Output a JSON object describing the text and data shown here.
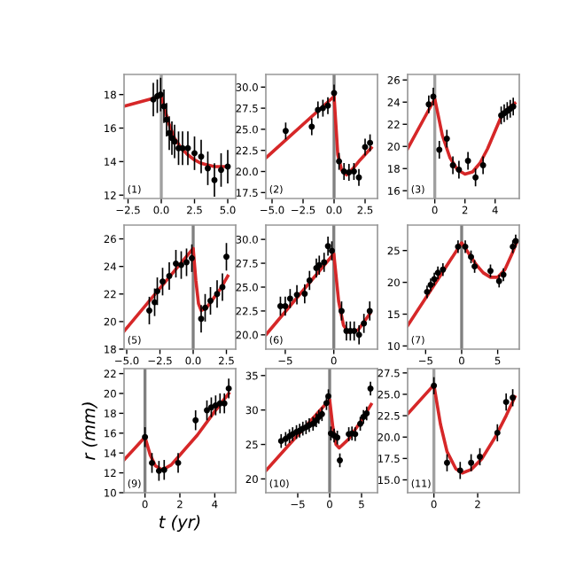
{
  "chart_data": [
    {
      "type": "scatter",
      "xlim": [
        -2.8,
        5.6
      ],
      "ylim": [
        11.8,
        19.2
      ],
      "xticks": [
        {
          "value": -2.5,
          "label": "−2.5"
        },
        {
          "value": 0,
          "label": "0.0"
        },
        {
          "value": 2.5,
          "label": "2.5"
        },
        {
          "value": 5,
          "label": "5.0"
        }
      ],
      "yticks": [
        12,
        14,
        16,
        18
      ],
      "annotations": [
        "(1)"
      ],
      "ref_lines": [
        {
          "axis": "x",
          "value": 0,
          "color": "#a0a0a0"
        }
      ],
      "series": [
        {
          "marker": "circle",
          "color": "#000000",
          "x": [
            -0.6,
            -0.3,
            -0.05,
            0.2,
            0.4,
            0.6,
            0.8,
            1.0,
            1.3,
            1.6,
            2.0,
            2.5,
            3.0,
            3.5,
            4.0,
            4.5,
            5.0
          ],
          "values": [
            17.7,
            17.9,
            18.0,
            17.3,
            16.5,
            15.7,
            15.4,
            15.2,
            14.8,
            14.8,
            14.8,
            14.5,
            14.3,
            13.6,
            12.9,
            13.5,
            13.7
          ],
          "errors": [
            1,
            1,
            1,
            1,
            1,
            1,
            1,
            1,
            1,
            1,
            1,
            1,
            1,
            1,
            1,
            1,
            1
          ]
        },
        {
          "type": "line",
          "color": "#d62728",
          "x": [
            -2.8,
            0,
            0.3,
            0.6,
            1.0,
            1.5,
            2.0,
            2.5,
            3.0,
            3.5,
            4.0,
            4.5,
            5.0
          ],
          "values": [
            17.3,
            17.9,
            17.0,
            16.2,
            15.4,
            14.8,
            14.4,
            14.1,
            13.9,
            13.8,
            13.7,
            13.7,
            13.7
          ]
        }
      ]
    },
    {
      "type": "scatter",
      "xlim": [
        -5.5,
        3.5
      ],
      "ylim": [
        16.8,
        31.5
      ],
      "xticks": [
        {
          "value": -5,
          "label": "−5.0"
        },
        {
          "value": -2.5,
          "label": "−2.5"
        },
        {
          "value": 0,
          "label": "0.0"
        },
        {
          "value": 2.5,
          "label": "2.5"
        }
      ],
      "yticks": [
        {
          "value": 17.5,
          "label": "17.5"
        },
        {
          "value": 20,
          "label": "20.0"
        },
        {
          "value": 22.5,
          "label": "22.5"
        },
        {
          "value": 25,
          "label": "25.0"
        },
        {
          "value": 27.5,
          "label": "27.5"
        },
        {
          "value": 30,
          "label": "30.0"
        }
      ],
      "annotations": [
        "(2)"
      ],
      "ref_lines": [
        {
          "axis": "x",
          "value": 0,
          "color": "#808080"
        }
      ],
      "series": [
        {
          "marker": "circle",
          "color": "#000000",
          "x": [
            -3.9,
            -1.8,
            -1.3,
            -0.9,
            -0.5,
            0.0,
            0.4,
            0.8,
            1.2,
            1.6,
            2.0,
            2.5,
            2.9
          ],
          "values": [
            24.8,
            25.3,
            27.3,
            27.5,
            27.8,
            29.3,
            21.2,
            20.0,
            19.9,
            20.0,
            19.3,
            22.9,
            23.4
          ],
          "errors": [
            1,
            1,
            1,
            1,
            1,
            1,
            1,
            1,
            1,
            1,
            1,
            1,
            1
          ]
        },
        {
          "type": "line",
          "color": "#d62728",
          "x": [
            -5.5,
            0,
            0.3,
            0.6,
            1.0,
            1.5,
            2.0,
            3.0
          ],
          "values": [
            21.6,
            28.9,
            22.0,
            20.2,
            19.6,
            20.3,
            21.2,
            22.8
          ]
        }
      ]
    },
    {
      "type": "scatter",
      "xlim": [
        -1.8,
        5.6
      ],
      "ylim": [
        15.3,
        26.5
      ],
      "xticks": [
        0,
        2,
        4
      ],
      "yticks": [
        16,
        18,
        20,
        22,
        24,
        26
      ],
      "annotations": [
        "(3)"
      ],
      "ref_lines": [
        {
          "axis": "x",
          "value": 0,
          "color": "#a0a0a0"
        }
      ],
      "series": [
        {
          "marker": "circle",
          "color": "#000000",
          "x": [
            -0.4,
            -0.1,
            0.3,
            0.8,
            1.2,
            1.6,
            2.2,
            2.7,
            3.2,
            4.4,
            4.6,
            4.8,
            5.0,
            5.2
          ],
          "values": [
            23.8,
            24.5,
            19.7,
            20.7,
            18.3,
            17.9,
            18.7,
            17.2,
            18.3,
            22.8,
            23.0,
            23.2,
            23.4,
            23.6
          ],
          "errors": [
            0.8,
            0.8,
            0.8,
            0.8,
            0.8,
            0.8,
            0.8,
            0.8,
            0.8,
            0.8,
            0.8,
            0.8,
            0.8,
            0.8
          ]
        },
        {
          "type": "line",
          "color": "#d62728",
          "x": [
            -1.8,
            0,
            0.5,
            1.0,
            1.5,
            2.0,
            2.5,
            3.0,
            3.5,
            4.0,
            4.5,
            5.3
          ],
          "values": [
            19.8,
            24.3,
            21.0,
            19.0,
            17.9,
            17.5,
            17.7,
            18.5,
            19.8,
            21.4,
            23.0,
            23.9
          ]
        }
      ]
    },
    {
      "type": "scatter",
      "xlim": [
        -5.2,
        3.2
      ],
      "ylim": [
        18,
        27
      ],
      "xticks": [
        {
          "value": -5,
          "label": "−5.0"
        },
        {
          "value": -2.5,
          "label": "−2.5"
        },
        {
          "value": 0,
          "label": "0.0"
        },
        {
          "value": 2.5,
          "label": "2.5"
        }
      ],
      "yticks": [
        18,
        20,
        22,
        24,
        26
      ],
      "annotations": [
        "(5)"
      ],
      "ref_lines": [
        {
          "axis": "x",
          "value": 0,
          "color": "#808080"
        }
      ],
      "series": [
        {
          "marker": "circle",
          "color": "#000000",
          "x": [
            -3.3,
            -2.9,
            -2.7,
            -2.3,
            -1.8,
            -1.3,
            -0.9,
            -0.5,
            -0.1,
            0.6,
            0.9,
            1.3,
            1.8,
            2.2,
            2.5
          ],
          "values": [
            20.8,
            21.4,
            22.2,
            22.9,
            23.3,
            24.2,
            24.1,
            24.3,
            24.6,
            20.2,
            21.0,
            21.5,
            22.0,
            22.5,
            24.7
          ],
          "errors": [
            1,
            1,
            1,
            1,
            1,
            1,
            1,
            1,
            1,
            1,
            1,
            1,
            1,
            1,
            1
          ]
        },
        {
          "type": "line",
          "color": "#d62728",
          "x": [
            -5.2,
            0,
            0.2,
            0.4,
            0.6,
            1.0,
            2.0,
            2.6
          ],
          "values": [
            19.3,
            25.3,
            23.0,
            21.3,
            20.8,
            21.0,
            22.3,
            23.3
          ]
        }
      ]
    },
    {
      "type": "scatter",
      "xlim": [
        -7,
        4.5
      ],
      "ylim": [
        18.5,
        31.5
      ],
      "xticks": [
        {
          "value": -5,
          "label": "−5"
        },
        0
      ],
      "yticks": [
        {
          "value": 20,
          "label": "20.0"
        },
        {
          "value": 22.5,
          "label": "22.5"
        },
        {
          "value": 25,
          "label": "25.0"
        },
        {
          "value": 27.5,
          "label": "27.5"
        },
        {
          "value": 30,
          "label": "30.0"
        }
      ],
      "annotations": [
        "(6)"
      ],
      "ref_lines": [
        {
          "axis": "x",
          "value": 0,
          "color": "#808080"
        }
      ],
      "series": [
        {
          "marker": "circle",
          "color": "#000000",
          "x": [
            -5.5,
            -5.0,
            -4.5,
            -3.8,
            -3.0,
            -2.5,
            -1.8,
            -1.5,
            -1.0,
            -0.6,
            -0.2,
            0.8,
            1.3,
            1.7,
            2.1,
            2.6,
            3.1,
            3.7
          ],
          "values": [
            23.0,
            23.0,
            23.8,
            24.2,
            24.3,
            25.7,
            27.0,
            27.3,
            27.6,
            29.3,
            28.8,
            22.5,
            20.4,
            20.4,
            20.4,
            20.0,
            21.2,
            22.5
          ],
          "errors": [
            1,
            1,
            1,
            1,
            1,
            1,
            1,
            1,
            1,
            1,
            1,
            1,
            1,
            1,
            1,
            1,
            1,
            1
          ]
        },
        {
          "type": "line",
          "color": "#d62728",
          "x": [
            -7,
            0,
            0.5,
            1.0,
            1.5,
            2.5,
            3.7
          ],
          "values": [
            20.0,
            28.5,
            23.5,
            21.0,
            20.3,
            20.5,
            22.2
          ]
        }
      ]
    },
    {
      "type": "scatter",
      "xlim": [
        -7.5,
        8
      ],
      "ylim": [
        9.5,
        29
      ],
      "xticks": [
        {
          "value": -5,
          "label": "−5"
        },
        0,
        5
      ],
      "yticks": [
        10,
        15,
        20,
        25
      ],
      "annotations": [
        "(7)"
      ],
      "ref_lines": [
        {
          "axis": "x",
          "value": 0,
          "color": "#808080"
        }
      ],
      "series": [
        {
          "marker": "circle",
          "color": "#000000",
          "x": [
            -4.8,
            -4.3,
            -3.8,
            -3.3,
            -2.6,
            -0.5,
            0.5,
            1.3,
            1.8,
            4.0,
            5.2,
            5.8,
            7.1,
            7.5
          ],
          "values": [
            18.5,
            19.6,
            20.5,
            21.5,
            22.0,
            25.6,
            25.6,
            24.0,
            22.5,
            21.8,
            20.2,
            21.2,
            25.6,
            26.5
          ],
          "errors": [
            1,
            1,
            1,
            1,
            1,
            1,
            1,
            1,
            1,
            1,
            1,
            1,
            1,
            1
          ]
        },
        {
          "type": "line",
          "color": "#d62728",
          "x": [
            -7.5,
            0,
            1,
            2,
            3,
            4,
            5,
            6,
            7,
            7.6
          ],
          "values": [
            13.2,
            26.2,
            24.5,
            22.8,
            21.5,
            20.8,
            20.8,
            22.0,
            24.5,
            26.2
          ]
        }
      ]
    },
    {
      "type": "scatter",
      "xlim": [
        -1.2,
        5.2
      ],
      "ylim": [
        10,
        22.5
      ],
      "xticks": [
        0,
        2,
        4
      ],
      "yticks": [
        10,
        12,
        14,
        16,
        18,
        20,
        22
      ],
      "xlabel": "t (yr)",
      "ylabel": "r (mm)",
      "annotations": [
        "(9)"
      ],
      "ref_lines": [
        {
          "axis": "x",
          "value": 0,
          "color": "#808080"
        }
      ],
      "series": [
        {
          "marker": "circle",
          "color": "#000000",
          "x": [
            0.0,
            0.4,
            0.8,
            1.1,
            1.9,
            2.9,
            3.55,
            3.8,
            4.05,
            4.3,
            4.55,
            4.8
          ],
          "values": [
            15.6,
            13.0,
            12.2,
            12.3,
            13.0,
            17.3,
            18.3,
            18.6,
            18.8,
            19.0,
            19.0,
            20.5
          ],
          "errors": [
            1,
            1,
            1,
            1,
            1,
            1,
            1,
            1,
            1,
            1,
            1,
            1
          ]
        },
        {
          "type": "line",
          "color": "#d62728",
          "x": [
            -1.2,
            0,
            0.3,
            0.6,
            1.0,
            1.5,
            2.0,
            3.0,
            4.0,
            4.8
          ],
          "values": [
            13.3,
            15.6,
            13.8,
            12.7,
            12.3,
            12.8,
            13.8,
            15.8,
            18.2,
            20.0
          ]
        }
      ]
    },
    {
      "type": "scatter",
      "xlim": [
        -10,
        7.5
      ],
      "ylim": [
        18,
        36
      ],
      "xticks": [
        {
          "value": -5,
          "label": "−5"
        },
        0,
        5
      ],
      "yticks": [
        20,
        25,
        30,
        35
      ],
      "annotations": [
        "(10)"
      ],
      "ref_lines": [
        {
          "axis": "x",
          "value": 0,
          "color": "#808080"
        }
      ],
      "series": [
        {
          "marker": "circle",
          "color": "#000000",
          "x": [
            -7.6,
            -6.9,
            -6.3,
            -5.8,
            -5.2,
            -4.7,
            -4.2,
            -3.7,
            -3.2,
            -2.6,
            -2.1,
            -1.7,
            -1.2,
            -0.5,
            -0.2,
            0.2,
            0.7,
            1.2,
            1.6,
            3.0,
            3.5,
            4.0,
            4.8,
            5.3,
            5.8,
            6.4
          ],
          "values": [
            25.5,
            25.8,
            26.2,
            26.5,
            26.8,
            27.0,
            27.3,
            27.5,
            27.8,
            28.0,
            28.5,
            29.0,
            29.4,
            31.0,
            32.0,
            26.6,
            26.3,
            26.0,
            22.7,
            26.5,
            26.6,
            26.5,
            28.0,
            29.0,
            29.5,
            33.1
          ],
          "errors": [
            1,
            1,
            1,
            1,
            1,
            1,
            1,
            1,
            1,
            1,
            1,
            1,
            1,
            1,
            1,
            1,
            1,
            1,
            1,
            1,
            1,
            1,
            1,
            1,
            1,
            1
          ]
        },
        {
          "type": "line",
          "color": "#d62728",
          "x": [
            -10,
            0,
            0.5,
            1.0,
            1.5,
            3.0,
            5.0,
            6.5
          ],
          "values": [
            21.2,
            31.5,
            27.5,
            25.0,
            24.5,
            25.8,
            28.5,
            30.8
          ]
        }
      ]
    },
    {
      "type": "scatter",
      "xlim": [
        -1.2,
        3.9
      ],
      "ylim": [
        13.5,
        28
      ],
      "xticks": [
        0,
        2
      ],
      "yticks": [
        {
          "value": 15,
          "label": "15.0"
        },
        {
          "value": 17.5,
          "label": "17.5"
        },
        {
          "value": 20,
          "label": "20.0"
        },
        {
          "value": 22.5,
          "label": "22.5"
        },
        {
          "value": 25,
          "label": "25.0"
        },
        {
          "value": 27.5,
          "label": "27.5"
        }
      ],
      "annotations": [
        "(11)"
      ],
      "ref_lines": [
        {
          "axis": "x",
          "value": 0,
          "color": "#a0a0a0"
        }
      ],
      "series": [
        {
          "marker": "circle",
          "color": "#000000",
          "x": [
            0.0,
            0.6,
            1.2,
            1.7,
            2.1,
            2.9,
            3.3,
            3.6
          ],
          "values": [
            26.0,
            17.0,
            16.1,
            17.0,
            17.7,
            20.5,
            24.1,
            24.6
          ],
          "errors": [
            1,
            1,
            1,
            1,
            1,
            1,
            1,
            1
          ]
        },
        {
          "type": "line",
          "color": "#d62728",
          "x": [
            -1.2,
            0,
            0.3,
            0.6,
            1.0,
            1.3,
            1.7,
            2.2,
            2.8,
            3.3,
            3.7
          ],
          "values": [
            22.7,
            26.1,
            21.5,
            18.3,
            16.3,
            15.8,
            16.2,
            17.5,
            20.0,
            22.5,
            24.7
          ]
        }
      ]
    }
  ]
}
